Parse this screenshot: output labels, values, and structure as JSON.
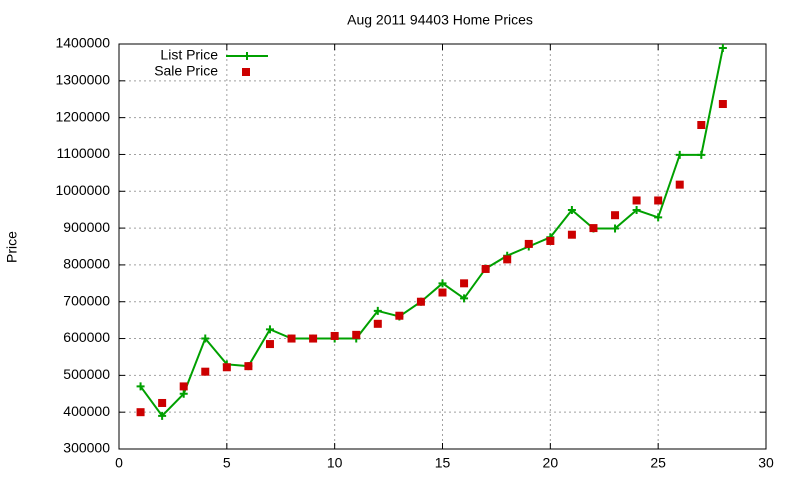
{
  "chart_data": {
    "type": "line",
    "title": "Aug 2011 94403 Home Prices",
    "y_label": "Price",
    "x": [
      1,
      2,
      3,
      4,
      5,
      6,
      7,
      8,
      9,
      10,
      11,
      12,
      13,
      14,
      15,
      16,
      17,
      18,
      19,
      20,
      21,
      22,
      23,
      24,
      25,
      26,
      27,
      28
    ],
    "series": [
      {
        "name": "List Price",
        "color": "#00a000",
        "style": "linespoints",
        "values": [
          470000,
          390000,
          450000,
          600000,
          530000,
          525000,
          625000,
          600000,
          600000,
          600000,
          600000,
          675000,
          660000,
          700000,
          750000,
          709000,
          790000,
          825000,
          850000,
          875000,
          949000,
          899000,
          899000,
          949000,
          929000,
          1099000,
          1099000,
          1389000
        ]
      },
      {
        "name": "Sale Price",
        "color": "#cc0000",
        "style": "points",
        "values": [
          400000,
          425000,
          470000,
          510000,
          522000,
          525000,
          585000,
          600000,
          600000,
          607000,
          610000,
          640000,
          662000,
          700000,
          725000,
          750000,
          789000,
          815000,
          857000,
          865000,
          882000,
          900000,
          935000,
          975000,
          975000,
          1018000,
          1180000,
          1237000
        ]
      }
    ],
    "xlim": [
      0,
      30
    ],
    "xticks": [
      0,
      5,
      10,
      15,
      20,
      25,
      30
    ],
    "ylim": [
      300000,
      1400000
    ],
    "yticks": [
      300000,
      400000,
      500000,
      600000,
      700000,
      800000,
      900000,
      1000000,
      1100000,
      1200000,
      1300000,
      1400000
    ],
    "grid": true,
    "legend": "top-left"
  }
}
